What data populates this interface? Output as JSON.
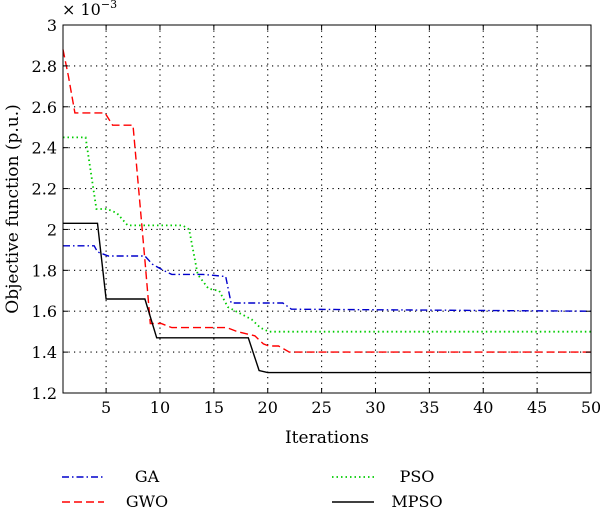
{
  "chart_data": {
    "type": "line",
    "title": "",
    "xlabel": "Iterations",
    "ylabel": "Objective function (p.u.)",
    "multiplier_label": "× 10",
    "multiplier_exponent": "−3",
    "xlim": [
      1,
      50
    ],
    "ylim": [
      1.2,
      3.0
    ],
    "x_ticks": [
      5,
      10,
      15,
      20,
      25,
      30,
      35,
      40,
      45,
      50
    ],
    "y_ticks": [
      1.2,
      1.4,
      1.6,
      1.8,
      2.0,
      2.2,
      2.4,
      2.6,
      2.8,
      3.0
    ],
    "x_tick_labels": [
      "5",
      "10",
      "15",
      "20",
      "25",
      "30",
      "35",
      "40",
      "45",
      "50"
    ],
    "y_tick_labels": [
      "1.2",
      "1.4",
      "1.6",
      "1.8",
      "2",
      "2.2",
      "2.4",
      "2.6",
      "2.8",
      "3"
    ],
    "grid": true,
    "legend_position": "bottom, below plot, two columns",
    "series": [
      {
        "name": "GA",
        "color": "#0000cc",
        "dash": "dashdot",
        "points": [
          [
            1,
            1.92
          ],
          [
            3.9,
            1.92
          ],
          [
            4.2,
            1.89
          ],
          [
            5.2,
            1.87
          ],
          [
            8.6,
            1.87
          ],
          [
            9.3,
            1.83
          ],
          [
            10.3,
            1.8
          ],
          [
            11.1,
            1.78
          ],
          [
            14,
            1.78
          ],
          [
            16.1,
            1.77
          ],
          [
            16.6,
            1.64
          ],
          [
            21.4,
            1.64
          ],
          [
            22.2,
            1.61
          ],
          [
            50,
            1.6
          ]
        ]
      },
      {
        "name": "GWO",
        "color": "#ff0000",
        "dash": "dashed",
        "points": [
          [
            1,
            2.88
          ],
          [
            1.5,
            2.75
          ],
          [
            2.1,
            2.57
          ],
          [
            4.9,
            2.57
          ],
          [
            5.6,
            2.51
          ],
          [
            7.5,
            2.51
          ],
          [
            8.1,
            2.15
          ],
          [
            8.6,
            1.85
          ],
          [
            9.1,
            1.54
          ],
          [
            10.1,
            1.54
          ],
          [
            11.1,
            1.52
          ],
          [
            16.2,
            1.52
          ],
          [
            17.2,
            1.5
          ],
          [
            18.8,
            1.48
          ],
          [
            19.6,
            1.44
          ],
          [
            20.1,
            1.43
          ],
          [
            21,
            1.43
          ],
          [
            22,
            1.4
          ],
          [
            50,
            1.4
          ]
        ]
      },
      {
        "name": "PSO",
        "color": "#00cc00",
        "dash": "dotted",
        "points": [
          [
            1,
            2.45
          ],
          [
            3.1,
            2.45
          ],
          [
            4.1,
            2.1
          ],
          [
            5.1,
            2.1
          ],
          [
            6,
            2.08
          ],
          [
            7,
            2.02
          ],
          [
            12.1,
            2.02
          ],
          [
            12.7,
            2.0
          ],
          [
            13.5,
            1.78
          ],
          [
            14.5,
            1.71
          ],
          [
            15.5,
            1.7
          ],
          [
            16.3,
            1.62
          ],
          [
            18.5,
            1.56
          ],
          [
            19.3,
            1.52
          ],
          [
            20.1,
            1.5
          ],
          [
            50,
            1.5
          ]
        ]
      },
      {
        "name": "MPSO",
        "color": "#000000",
        "dash": "solid",
        "points": [
          [
            1,
            2.03
          ],
          [
            4.2,
            2.03
          ],
          [
            5,
            1.66
          ],
          [
            8.6,
            1.66
          ],
          [
            9.7,
            1.47
          ],
          [
            18.2,
            1.47
          ],
          [
            19.2,
            1.31
          ],
          [
            20,
            1.3
          ],
          [
            50,
            1.3
          ]
        ]
      }
    ]
  }
}
